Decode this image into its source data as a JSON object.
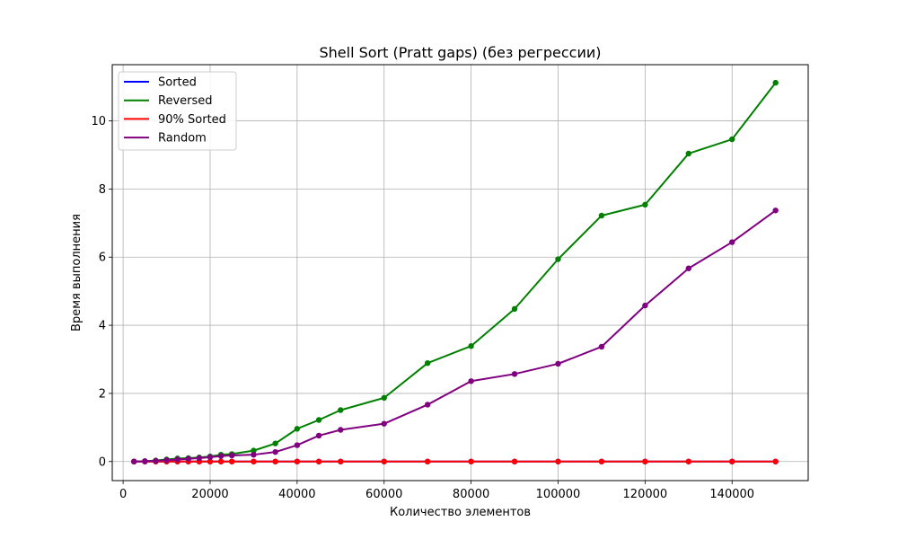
{
  "chart_data": {
    "type": "line",
    "title": "Shell Sort (Pratt gaps) (без регрессии)",
    "xlabel": "Количество элементов",
    "ylabel": "Время выполнения",
    "xlim": [
      -2500,
      157500
    ],
    "ylim": [
      -0.56,
      11.65
    ],
    "xticks": [
      0,
      20000,
      40000,
      60000,
      80000,
      100000,
      120000,
      140000
    ],
    "yticks": [
      0,
      2,
      4,
      6,
      8,
      10
    ],
    "grid": true,
    "legend_position": "top-left",
    "x": [
      2500,
      5000,
      7500,
      10000,
      12500,
      15000,
      17500,
      20000,
      22500,
      25000,
      30000,
      35000,
      40000,
      45000,
      50000,
      60000,
      70000,
      80000,
      90000,
      100000,
      110000,
      120000,
      130000,
      140000,
      150000
    ],
    "series": [
      {
        "name": "Sorted",
        "color": "#0000ff",
        "values": [
          0,
          0,
          0,
          0,
          0,
          0,
          0,
          0,
          0,
          0,
          0,
          0,
          0,
          0,
          0,
          0,
          0,
          0,
          0,
          0,
          0,
          0,
          0,
          0,
          0
        ]
      },
      {
        "name": "Reversed",
        "color": "#008000",
        "values": [
          0.0,
          0.01,
          0.03,
          0.06,
          0.09,
          0.1,
          0.12,
          0.15,
          0.2,
          0.22,
          0.32,
          0.53,
          0.96,
          1.22,
          1.51,
          1.87,
          2.89,
          3.39,
          4.48,
          5.94,
          7.22,
          7.54,
          9.04,
          9.46,
          11.12
        ]
      },
      {
        "name": "90% Sorted",
        "color": "#ff0000",
        "values": [
          0,
          0,
          0,
          0,
          0,
          0,
          0,
          0,
          0,
          0,
          0,
          0,
          0,
          0,
          0,
          0,
          0,
          0,
          0,
          0,
          0,
          0,
          0,
          0,
          0
        ]
      },
      {
        "name": "Random",
        "color": "#800080",
        "values": [
          0.0,
          0.01,
          0.02,
          0.04,
          0.06,
          0.08,
          0.1,
          0.13,
          0.16,
          0.18,
          0.2,
          0.28,
          0.48,
          0.76,
          0.93,
          1.11,
          1.67,
          2.36,
          2.57,
          2.87,
          3.37,
          4.58,
          5.67,
          6.44,
          7.37
        ]
      }
    ]
  }
}
